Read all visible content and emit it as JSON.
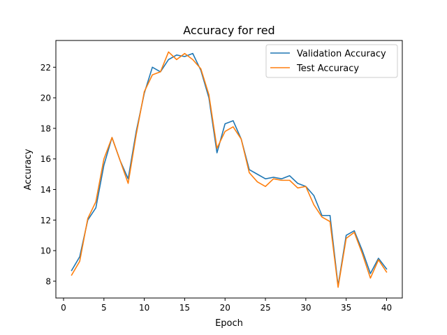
{
  "chart_data": {
    "type": "line",
    "title": "Accuracy for red",
    "xlabel": "Epoch",
    "ylabel": "Accuracy",
    "xlim": [
      -0.95,
      41.95
    ],
    "ylim": [
      6.9,
      23.75
    ],
    "xticks": [
      0,
      5,
      10,
      15,
      20,
      25,
      30,
      35,
      40
    ],
    "yticks": [
      8,
      10,
      12,
      14,
      16,
      18,
      20,
      22
    ],
    "grid": false,
    "legend_position": "top-right",
    "x": [
      1,
      2,
      3,
      4,
      5,
      6,
      7,
      8,
      9,
      10,
      11,
      12,
      13,
      14,
      15,
      16,
      17,
      18,
      19,
      20,
      21,
      22,
      23,
      24,
      25,
      26,
      27,
      28,
      29,
      30,
      31,
      32,
      33,
      34,
      35,
      36,
      37,
      38,
      39,
      40
    ],
    "series": [
      {
        "name": "Validation Accuracy",
        "color": "#1f77b4",
        "values": [
          8.7,
          9.6,
          12.0,
          12.8,
          15.6,
          17.4,
          15.9,
          14.7,
          17.8,
          20.3,
          22.0,
          21.7,
          22.5,
          22.8,
          22.7,
          22.9,
          21.8,
          20.0,
          16.4,
          18.3,
          18.5,
          17.3,
          15.3,
          15.0,
          14.7,
          14.8,
          14.7,
          14.9,
          14.4,
          14.2,
          13.6,
          12.3,
          12.3,
          7.7,
          11.0,
          11.3,
          10.0,
          8.5,
          9.5,
          8.8
        ]
      },
      {
        "name": "Test Accuracy",
        "color": "#ff7f0e",
        "values": [
          8.4,
          9.3,
          12.1,
          13.2,
          16.0,
          17.4,
          15.9,
          14.4,
          17.6,
          20.4,
          21.5,
          21.7,
          23.0,
          22.5,
          22.9,
          22.5,
          21.9,
          20.2,
          16.7,
          17.8,
          18.1,
          17.3,
          15.1,
          14.5,
          14.2,
          14.7,
          14.6,
          14.6,
          14.1,
          14.2,
          13.0,
          12.2,
          11.9,
          7.6,
          10.8,
          11.2,
          9.8,
          8.2,
          9.4,
          8.6
        ]
      }
    ]
  }
}
